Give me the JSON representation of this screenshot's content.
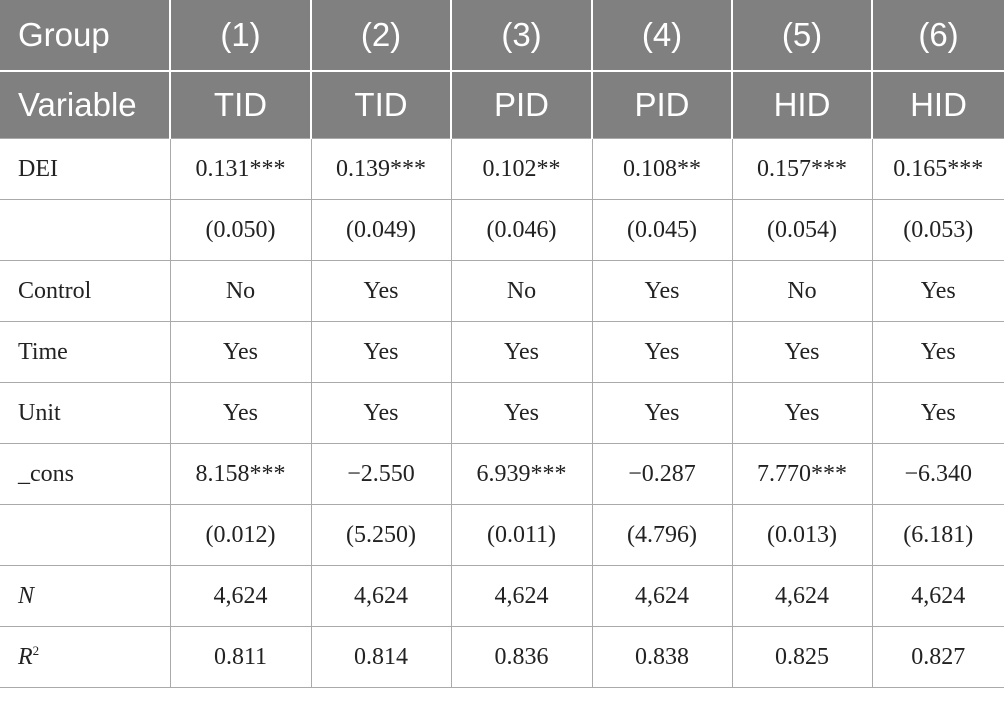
{
  "table": {
    "header": [
      [
        "Group",
        "(1)",
        "(2)",
        "(3)",
        "(4)",
        "(5)",
        "(6)"
      ],
      [
        "Variable",
        "TID",
        "TID",
        "PID",
        "PID",
        "HID",
        "HID"
      ]
    ],
    "rows": [
      {
        "label": "DEI",
        "cells": [
          "0.131***",
          "0.139***",
          "0.102**",
          "0.108**",
          "0.157***",
          "0.165***"
        ]
      },
      {
        "label": null,
        "cells": [
          "(0.050)",
          "(0.049)",
          "(0.046)",
          "(0.045)",
          "(0.054)",
          "(0.053)"
        ]
      },
      {
        "label": "Control",
        "cells": [
          "No",
          "Yes",
          "No",
          "Yes",
          "No",
          "Yes"
        ]
      },
      {
        "label": "Time",
        "cells": [
          "Yes",
          "Yes",
          "Yes",
          "Yes",
          "Yes",
          "Yes"
        ]
      },
      {
        "label": "Unit",
        "cells": [
          "Yes",
          "Yes",
          "Yes",
          "Yes",
          "Yes",
          "Yes"
        ]
      },
      {
        "label": "_cons",
        "cells": [
          "8.158***",
          "−2.550",
          "6.939***",
          "−0.287",
          "7.770***",
          "−6.340"
        ]
      },
      {
        "label": null,
        "cells": [
          "(0.012)",
          "(5.250)",
          "(0.011)",
          "(4.796)",
          "(0.013)",
          "(6.181)"
        ]
      },
      {
        "label": "N",
        "italic": true,
        "cells": [
          "4,624",
          "4,624",
          "4,624",
          "4,624",
          "4,624",
          "4,624"
        ]
      },
      {
        "label": "R",
        "label_sup": "2",
        "italic": true,
        "cells": [
          "0.811",
          "0.814",
          "0.836",
          "0.838",
          "0.825",
          "0.827"
        ]
      }
    ]
  }
}
